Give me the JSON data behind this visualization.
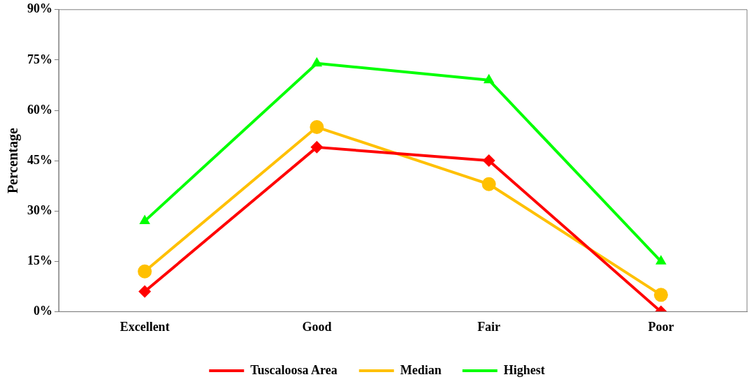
{
  "chart_data": {
    "type": "line",
    "ylabel": "Percentage",
    "categories": [
      "Excellent",
      "Good",
      "Fair",
      "Poor"
    ],
    "series": [
      {
        "name": "Tuscaloosa Area",
        "color": "#ff0000",
        "marker": "diamond",
        "values": [
          6,
          49,
          45,
          0
        ]
      },
      {
        "name": "Median",
        "color": "#ffc000",
        "marker": "circle",
        "values": [
          12,
          55,
          38,
          5
        ]
      },
      {
        "name": "Highest",
        "color": "#00ff00",
        "marker": "triangle",
        "values": [
          27,
          74,
          69,
          15
        ]
      }
    ],
    "ylim": [
      0,
      90
    ],
    "yticks": [
      {
        "value": 0,
        "label": "0%"
      },
      {
        "value": 15,
        "label": "15%"
      },
      {
        "value": 30,
        "label": "30%"
      },
      {
        "value": 45,
        "label": "45%"
      },
      {
        "value": 60,
        "label": "60%"
      },
      {
        "value": 75,
        "label": "75%"
      },
      {
        "value": 90,
        "label": "90%"
      }
    ],
    "grid": false,
    "legend": "bottom",
    "line_style": "solid"
  }
}
